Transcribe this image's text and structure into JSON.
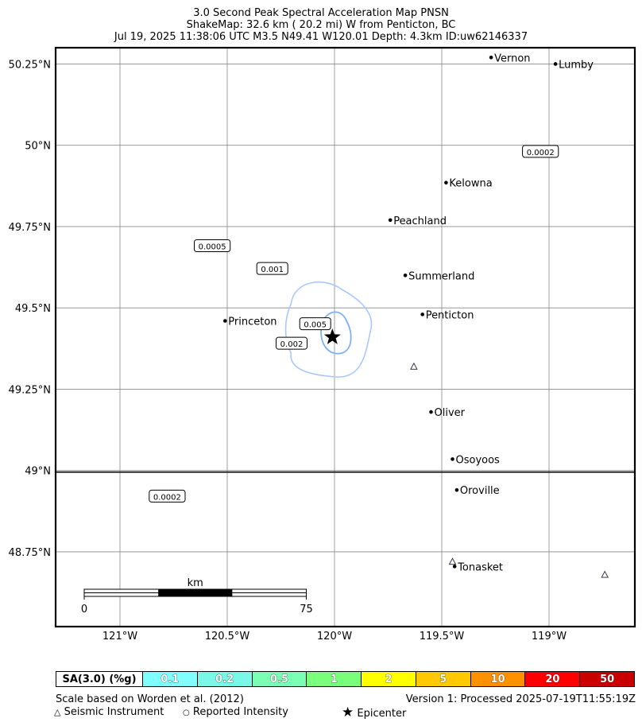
{
  "header": {
    "line1": "3.0 Second Peak Spectral Acceleration Map PNSN",
    "line2": "ShakeMap: 32.6 km (  20.2 mi) W from Penticton, BC",
    "line3": "Jul 19, 2025 11:38:06 UTC M3.5 N49.41 W120.01 Depth: 4.3km ID:uw62146337"
  },
  "axes": {
    "lat_ticks": [
      {
        "value": 50.25,
        "label": "50.25°N"
      },
      {
        "value": 50.0,
        "label": "50°N"
      },
      {
        "value": 49.75,
        "label": "49.75°N"
      },
      {
        "value": 49.5,
        "label": "49.5°N"
      },
      {
        "value": 49.25,
        "label": "49.25°N"
      },
      {
        "value": 49.0,
        "label": "49°N"
      },
      {
        "value": 48.75,
        "label": "48.75°N"
      }
    ],
    "lon_ticks": [
      {
        "value": -121.0,
        "label": "121°W"
      },
      {
        "value": -120.5,
        "label": "120.5°W"
      },
      {
        "value": -120.0,
        "label": "120°W"
      },
      {
        "value": -119.5,
        "label": "119.5°W"
      },
      {
        "value": -119.0,
        "label": "119°W"
      }
    ],
    "lon_range": [
      -121.3,
      -118.6
    ],
    "lat_range": [
      48.52,
      50.3
    ],
    "border_lat": 49.0
  },
  "cities": [
    {
      "name": "Vernon",
      "lat": 50.27,
      "lon": -119.27
    },
    {
      "name": "Lumby",
      "lat": 50.25,
      "lon": -118.97
    },
    {
      "name": "Kelowna",
      "lat": 49.885,
      "lon": -119.48
    },
    {
      "name": "Peachland",
      "lat": 49.77,
      "lon": -119.74
    },
    {
      "name": "Summerland",
      "lat": 49.6,
      "lon": -119.67
    },
    {
      "name": "Penticton",
      "lat": 49.48,
      "lon": -119.59
    },
    {
      "name": "Princeton",
      "lat": 49.46,
      "lon": -120.51
    },
    {
      "name": "Oliver",
      "lat": 49.18,
      "lon": -119.55
    },
    {
      "name": "Osoyoos",
      "lat": 49.035,
      "lon": -119.45
    },
    {
      "name": "Oroville",
      "lat": 48.94,
      "lon": -119.43
    },
    {
      "name": "Tonasket",
      "lat": 48.705,
      "lon": -119.44
    }
  ],
  "contour_labels": [
    {
      "text": "0.0002",
      "lat": 49.98,
      "lon": -119.04
    },
    {
      "text": "0.0005",
      "lat": 49.69,
      "lon": -120.57
    },
    {
      "text": "0.001",
      "lat": 49.62,
      "lon": -120.29
    },
    {
      "text": "0.005",
      "lat": 49.45,
      "lon": -120.09
    },
    {
      "text": "0.002",
      "lat": 49.39,
      "lon": -120.2
    },
    {
      "text": "0.0002",
      "lat": 48.92,
      "lon": -120.78
    }
  ],
  "stations": [
    {
      "lat": 49.32,
      "lon": -119.63
    },
    {
      "lat": 48.72,
      "lon": -119.45
    },
    {
      "lat": 48.68,
      "lon": -118.74
    }
  ],
  "epicenter": {
    "lat": 49.41,
    "lon": -120.01
  },
  "scalebar": {
    "unit": "km",
    "start": "0",
    "end": "75",
    "km": 75
  },
  "legend": {
    "title": "SA(3.0) (%g)",
    "bins": [
      {
        "label": "0.1",
        "color": "#80ffff"
      },
      {
        "label": "0.2",
        "color": "#7af8e7"
      },
      {
        "label": "0.5",
        "color": "#7affb4"
      },
      {
        "label": "1",
        "color": "#7aff7a"
      },
      {
        "label": "2",
        "color": "#ffff00"
      },
      {
        "label": "5",
        "color": "#ffc800"
      },
      {
        "label": "10",
        "color": "#ff9100"
      },
      {
        "label": "20",
        "color": "#ff0000"
      },
      {
        "label": "50",
        "color": "#c80000"
      }
    ]
  },
  "footer": {
    "scale_note": "Scale based on Worden et al. (2012)",
    "version": "Version 1: Processed 2025-07-19T11:55:19Z",
    "seismic": "Seismic Instrument",
    "reported": "Reported Intensity",
    "epicenter": "Epicenter"
  },
  "colors": {
    "contour": "#a9c8ff",
    "contour_inner": "#7fb1f2"
  }
}
